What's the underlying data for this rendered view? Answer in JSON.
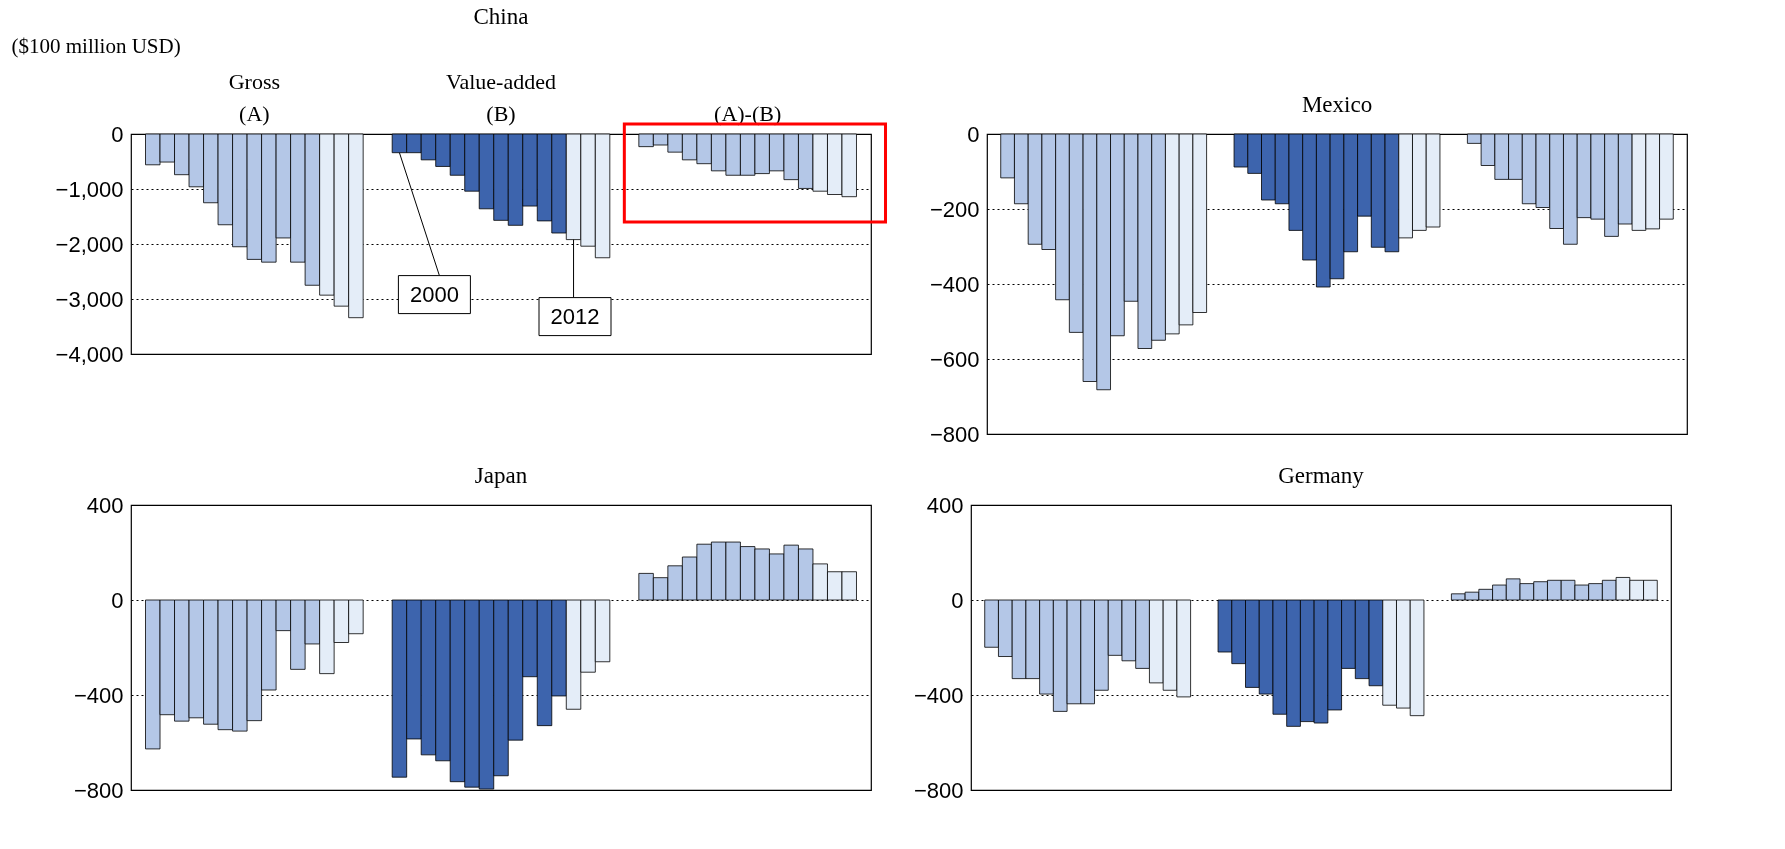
{
  "chart_data": [
    {
      "type": "bar",
      "title": "China",
      "ylabel": "($100 million  USD)",
      "categories": [
        null,
        null,
        null,
        null,
        null,
        null,
        null,
        null,
        null,
        null,
        null,
        null,
        null,
        null,
        null,
        null,
        null,
        null,
        null,
        null,
        null,
        null,
        null,
        null,
        null,
        null,
        null,
        null,
        null,
        null,
        null,
        null,
        null,
        null,
        null,
        null,
        null,
        null,
        null,
        null,
        null,
        null,
        null,
        null,
        null,
        null,
        null,
        null,
        null,
        null,
        null
      ],
      "values": [
        null,
        -560,
        -510,
        -740,
        -960,
        -1250,
        -1650,
        -2050,
        -2280,
        -2330,
        -1890,
        -2330,
        -2750,
        -2930,
        -3130,
        -3340,
        null,
        null,
        -340,
        -340,
        -470,
        -590,
        -750,
        -1040,
        -1360,
        -1570,
        -1660,
        -1310,
        -1580,
        -1800,
        -1920,
        -2040,
        -2250,
        null,
        null,
        -230,
        -200,
        -330,
        -470,
        -540,
        -670,
        -750,
        -750,
        -720,
        -670,
        -830,
        -990,
        -1040,
        -1100,
        -1140,
        null
      ],
      "colors": [
        null,
        "#b4c7e7",
        "#b4c7e7",
        "#b4c7e7",
        "#b4c7e7",
        "#b4c7e7",
        "#b4c7e7",
        "#b4c7e7",
        "#b4c7e7",
        "#b4c7e7",
        "#b4c7e7",
        "#b4c7e7",
        "#b4c7e7",
        "#e4edf8",
        "#e4edf8",
        "#e4edf8",
        null,
        null,
        "#3d64ad",
        "#3d64ad",
        "#3d64ad",
        "#3d64ad",
        "#3d64ad",
        "#3d64ad",
        "#3d64ad",
        "#3d64ad",
        "#3d64ad",
        "#3d64ad",
        "#3d64ad",
        "#3d64ad",
        "#e4edf8",
        "#e4edf8",
        "#e4edf8",
        null,
        null,
        "#b4c7e7",
        "#b4c7e7",
        "#b4c7e7",
        "#b4c7e7",
        "#b4c7e7",
        "#b4c7e7",
        "#b4c7e7",
        "#b4c7e7",
        "#b4c7e7",
        "#b4c7e7",
        "#b4c7e7",
        "#b4c7e7",
        "#e4edf8",
        "#e4edf8",
        "#e4edf8",
        null
      ],
      "ylim": [
        -4000,
        0
      ],
      "yticks": [
        {
          "value": -4000,
          "label": "−4,000"
        },
        {
          "value": -3000,
          "label": "−3,000"
        },
        {
          "value": -2000,
          "label": "−2,000"
        },
        {
          "value": -1000,
          "label": "−1,000"
        },
        0
      ],
      "grid": "y",
      "tick_labels": "y",
      "annotations": [
        "Gross\n(A)",
        "Value-added\n(B)",
        "(A)-(B)",
        "2000",
        "2012"
      ]
    },
    {
      "type": "bar",
      "title": "Mexico",
      "categories": [
        null,
        null,
        null,
        null,
        null,
        null,
        null,
        null,
        null,
        null,
        null,
        null,
        null,
        null,
        null,
        null,
        null,
        null,
        null,
        null,
        null,
        null,
        null,
        null,
        null,
        null,
        null,
        null,
        null,
        null,
        null,
        null,
        null,
        null,
        null,
        null,
        null,
        null,
        null,
        null,
        null,
        null,
        null,
        null,
        null,
        null,
        null,
        null,
        null,
        null,
        null
      ],
      "values": [
        null,
        -117,
        -186,
        -294,
        -308,
        -442,
        -529,
        -660,
        -682,
        -538,
        -446,
        -572,
        -550,
        -533,
        -509,
        -476,
        null,
        null,
        -88,
        -105,
        -176,
        -186,
        -257,
        -336,
        -408,
        -386,
        -314,
        -219,
        -302,
        -314,
        -277,
        -257,
        -248,
        null,
        null,
        -25,
        -84,
        -121,
        -121,
        -186,
        -196,
        -252,
        -294,
        -223,
        -227,
        -273,
        -240,
        -257,
        -253,
        -227,
        null
      ],
      "colors": [
        null,
        "#b4c7e7",
        "#b4c7e7",
        "#b4c7e7",
        "#b4c7e7",
        "#b4c7e7",
        "#b4c7e7",
        "#b4c7e7",
        "#b4c7e7",
        "#b4c7e7",
        "#b4c7e7",
        "#b4c7e7",
        "#b4c7e7",
        "#e4edf8",
        "#e4edf8",
        "#e4edf8",
        null,
        null,
        "#3d64ad",
        "#3d64ad",
        "#3d64ad",
        "#3d64ad",
        "#3d64ad",
        "#3d64ad",
        "#3d64ad",
        "#3d64ad",
        "#3d64ad",
        "#3d64ad",
        "#3d64ad",
        "#3d64ad",
        "#e4edf8",
        "#e4edf8",
        "#e4edf8",
        null,
        null,
        "#b4c7e7",
        "#b4c7e7",
        "#b4c7e7",
        "#b4c7e7",
        "#b4c7e7",
        "#b4c7e7",
        "#b4c7e7",
        "#b4c7e7",
        "#b4c7e7",
        "#b4c7e7",
        "#b4c7e7",
        "#b4c7e7",
        "#e4edf8",
        "#e4edf8",
        "#e4edf8",
        null
      ],
      "ylim": [
        -800,
        0
      ],
      "yticks": [
        -800,
        -600,
        -400,
        -200,
        0
      ],
      "grid": "y",
      "tick_labels": "y"
    },
    {
      "type": "bar",
      "title": "Japan",
      "categories": [
        null,
        null,
        null,
        null,
        null,
        null,
        null,
        null,
        null,
        null,
        null,
        null,
        null,
        null,
        null,
        null,
        null,
        null,
        null,
        null,
        null,
        null,
        null,
        null,
        null,
        null,
        null,
        null,
        null,
        null,
        null,
        null,
        null,
        null,
        null,
        null,
        null,
        null,
        null,
        null,
        null,
        null,
        null,
        null,
        null,
        null,
        null,
        null,
        null,
        null,
        null
      ],
      "values": [
        null,
        -627,
        -483,
        -510,
        -496,
        -523,
        -546,
        -552,
        -508,
        -379,
        -129,
        -292,
        -185,
        -310,
        -179,
        -142,
        null,
        null,
        -746,
        -585,
        -652,
        -677,
        -765,
        -788,
        -796,
        -740,
        -590,
        -323,
        -529,
        -404,
        -460,
        -304,
        -260,
        null,
        null,
        112,
        94,
        144,
        181,
        235,
        244,
        244,
        225,
        215,
        194,
        231,
        215,
        152,
        119,
        119,
        null
      ],
      "colors": [
        null,
        "#b4c7e7",
        "#b4c7e7",
        "#b4c7e7",
        "#b4c7e7",
        "#b4c7e7",
        "#b4c7e7",
        "#b4c7e7",
        "#b4c7e7",
        "#b4c7e7",
        "#b4c7e7",
        "#b4c7e7",
        "#b4c7e7",
        "#e4edf8",
        "#e4edf8",
        "#e4edf8",
        null,
        null,
        "#3d64ad",
        "#3d64ad",
        "#3d64ad",
        "#3d64ad",
        "#3d64ad",
        "#3d64ad",
        "#3d64ad",
        "#3d64ad",
        "#3d64ad",
        "#3d64ad",
        "#3d64ad",
        "#3d64ad",
        "#e4edf8",
        "#e4edf8",
        "#e4edf8",
        null,
        null,
        "#b4c7e7",
        "#b4c7e7",
        "#b4c7e7",
        "#b4c7e7",
        "#b4c7e7",
        "#b4c7e7",
        "#b4c7e7",
        "#b4c7e7",
        "#b4c7e7",
        "#b4c7e7",
        "#b4c7e7",
        "#b4c7e7",
        "#e4edf8",
        "#e4edf8",
        "#e4edf8",
        null
      ],
      "ylim": [
        -800,
        400
      ],
      "yticks": [
        -800,
        -400,
        0,
        400
      ],
      "grid": "y",
      "tick_labels": "y"
    },
    {
      "type": "bar",
      "title": "Germany",
      "categories": [
        null,
        null,
        null,
        null,
        null,
        null,
        null,
        null,
        null,
        null,
        null,
        null,
        null,
        null,
        null,
        null,
        null,
        null,
        null,
        null,
        null,
        null,
        null,
        null,
        null,
        null,
        null,
        null,
        null,
        null,
        null,
        null,
        null,
        null,
        null,
        null,
        null,
        null,
        null,
        null,
        null,
        null,
        null,
        null,
        null,
        null,
        null,
        null,
        null,
        null,
        null
      ],
      "values": [
        null,
        -199,
        -238,
        -331,
        -331,
        -396,
        -469,
        -437,
        -437,
        -380,
        -233,
        -256,
        -288,
        -349,
        -380,
        -408,
        null,
        null,
        -219,
        -268,
        -368,
        -396,
        -481,
        -532,
        -512,
        -518,
        -463,
        -288,
        -331,
        -361,
        -443,
        -455,
        -487,
        null,
        null,
        26,
        33,
        45,
        63,
        89,
        69,
        77,
        83,
        83,
        63,
        69,
        83,
        95,
        83,
        83,
        null
      ],
      "colors": [
        null,
        "#b4c7e7",
        "#b4c7e7",
        "#b4c7e7",
        "#b4c7e7",
        "#b4c7e7",
        "#b4c7e7",
        "#b4c7e7",
        "#b4c7e7",
        "#b4c7e7",
        "#b4c7e7",
        "#b4c7e7",
        "#b4c7e7",
        "#e4edf8",
        "#e4edf8",
        "#e4edf8",
        null,
        null,
        "#3d64ad",
        "#3d64ad",
        "#3d64ad",
        "#3d64ad",
        "#3d64ad",
        "#3d64ad",
        "#3d64ad",
        "#3d64ad",
        "#3d64ad",
        "#3d64ad",
        "#3d64ad",
        "#3d64ad",
        "#e4edf8",
        "#e4edf8",
        "#e4edf8",
        null,
        null,
        "#b4c7e7",
        "#b4c7e7",
        "#b4c7e7",
        "#b4c7e7",
        "#b4c7e7",
        "#b4c7e7",
        "#b4c7e7",
        "#b4c7e7",
        "#b4c7e7",
        "#b4c7e7",
        "#b4c7e7",
        "#b4c7e7",
        "#e4edf8",
        "#e4edf8",
        "#e4edf8",
        null
      ],
      "ylim": [
        -800,
        400
      ],
      "yticks": [
        -800,
        -400,
        0,
        400
      ],
      "grid": "y",
      "tick_labels": "y"
    }
  ]
}
